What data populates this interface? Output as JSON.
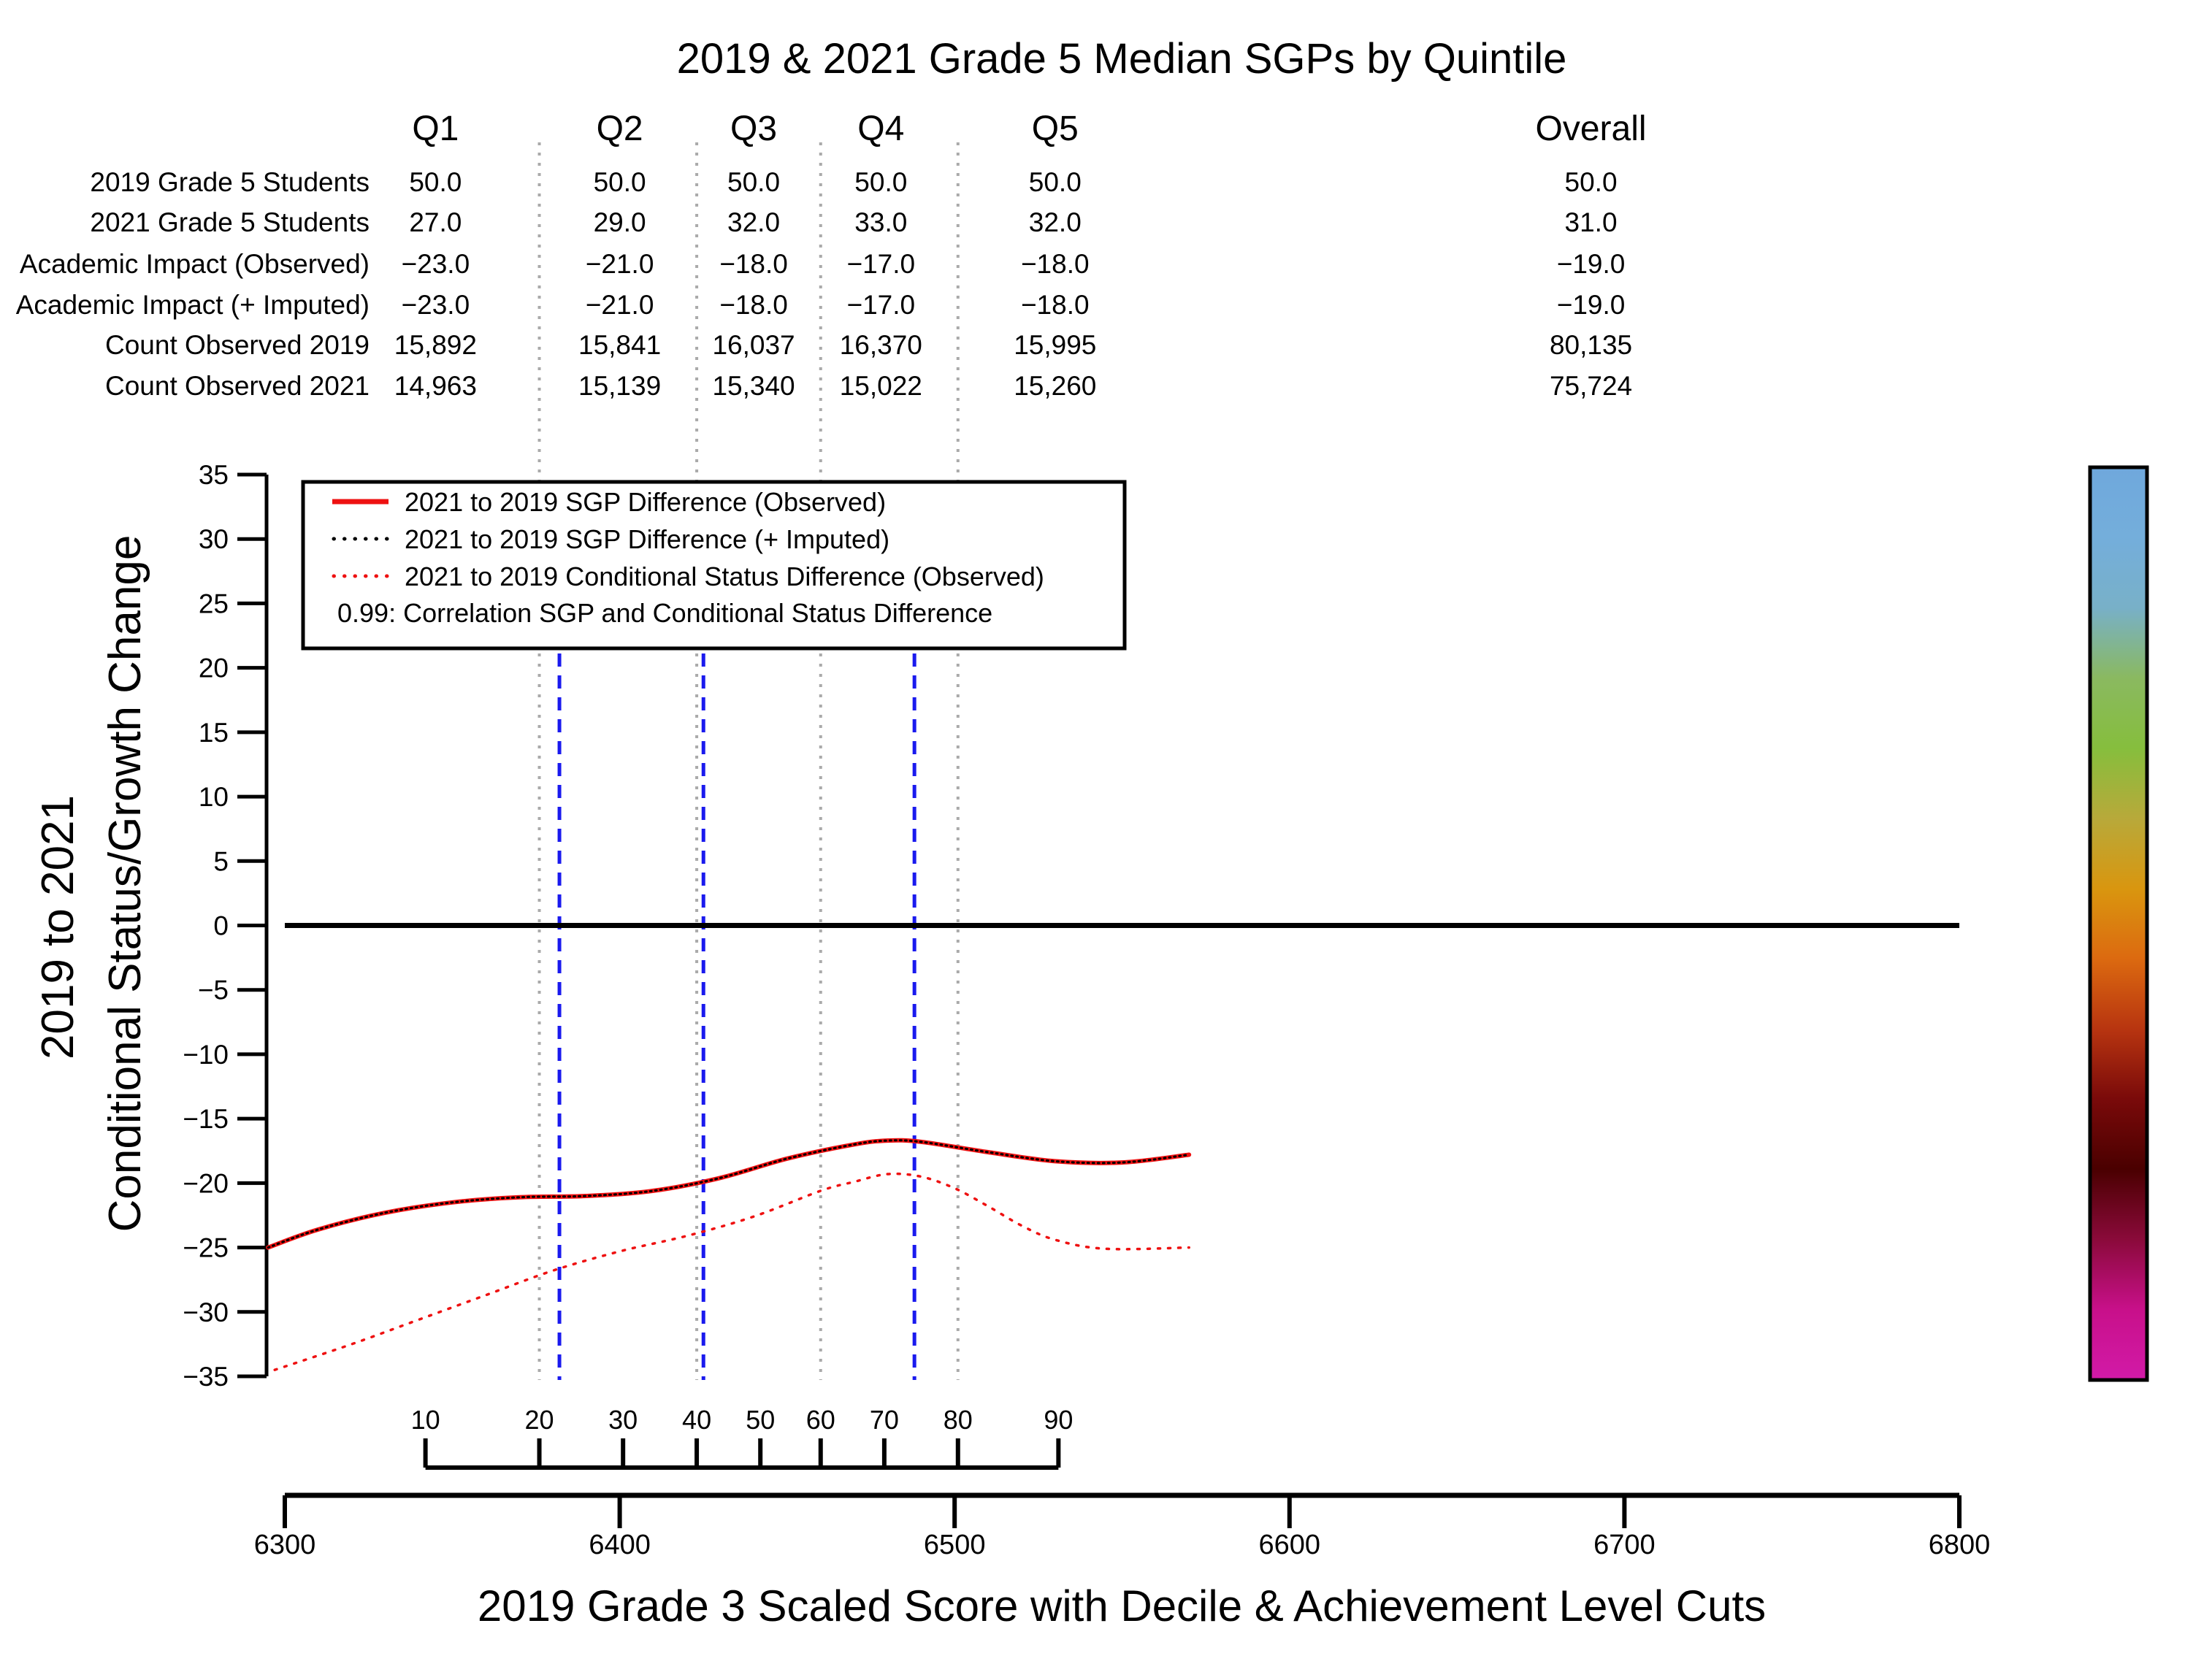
{
  "chart_data": {
    "type": "line",
    "title": "2019 & 2021 Grade 5 Median SGPs by Quintile",
    "xlabel": "2019 Grade 3 Scaled Score with Decile & Achievement Level Cuts",
    "ylabel_line1": "2019 to 2021",
    "ylabel_line2": "Conditional Status/Growth Change",
    "xlim": [
      6300,
      6800
    ],
    "ylim": [
      -35,
      35
    ],
    "x_ticks": [
      "6300",
      "6400",
      "6500",
      "6600",
      "6700",
      "6800"
    ],
    "y_ticks": [
      "35",
      "30",
      "25",
      "20",
      "15",
      "10",
      "5",
      "0",
      "−5",
      "−10",
      "−15",
      "−20",
      "−25",
      "−30",
      "−35"
    ],
    "decile_ticks": {
      "labels": [
        "10",
        "20",
        "30",
        "40",
        "50",
        "60",
        "70",
        "80",
        "90"
      ],
      "scores": [
        6342,
        6376,
        6401,
        6423,
        6442,
        6460,
        6479,
        6501,
        6531
      ]
    },
    "quintile_cuts": [
      6376,
      6423,
      6460,
      6501
    ],
    "achievement_level_cuts": [
      6382,
      6425,
      6488
    ],
    "zero_line": 0,
    "table": {
      "columns": [
        "Q1",
        "Q2",
        "Q3",
        "Q4",
        "Q5",
        "Overall"
      ],
      "rows": [
        {
          "label": "2019 Grade 5 Students",
          "values": [
            "50.0",
            "50.0",
            "50.0",
            "50.0",
            "50.0",
            "50.0"
          ]
        },
        {
          "label": "2021 Grade 5 Students",
          "values": [
            "27.0",
            "29.0",
            "32.0",
            "33.0",
            "32.0",
            "31.0"
          ]
        },
        {
          "label": "Academic Impact (Observed)",
          "values": [
            "−23.0",
            "−21.0",
            "−18.0",
            "−17.0",
            "−18.0",
            "−19.0"
          ]
        },
        {
          "label": "Academic Impact (+ Imputed)",
          "values": [
            "−23.0",
            "−21.0",
            "−18.0",
            "−17.0",
            "−18.0",
            "−19.0"
          ]
        },
        {
          "label": "Count Observed 2019",
          "values": [
            "15,892",
            "15,841",
            "16,037",
            "16,370",
            "15,995",
            "80,135"
          ]
        },
        {
          "label": "Count Observed 2021",
          "values": [
            "14,963",
            "15,139",
            "15,340",
            "15,022",
            "15,260",
            "75,724"
          ]
        }
      ]
    },
    "legend": {
      "placement": "top-left",
      "entries": [
        {
          "label": "2021 to 2019 SGP Difference (Observed)",
          "style": "solid",
          "color": "#ee1111"
        },
        {
          "label": "2021 to 2019 SGP Difference (+ Imputed)",
          "style": "dotted",
          "color": "#000000"
        },
        {
          "label": "2021 to 2019 Conditional Status Difference (Observed)",
          "style": "dotted",
          "color": "#ee1111"
        },
        {
          "label": "0.99: Correlation SGP and Conditional Status Difference",
          "style": "none",
          "color": "#000000"
        }
      ]
    },
    "series": [
      {
        "name": "2021 to 2019 SGP Difference (Observed)",
        "color": "#ee1111",
        "style": "solid",
        "x": [
          6295,
          6310,
          6330,
          6350,
          6370,
          6390,
          6410,
          6430,
          6450,
          6470,
          6480,
          6490,
          6510,
          6530,
          6550,
          6570
        ],
        "y": [
          -25.0,
          -23.6,
          -22.3,
          -21.5,
          -21.1,
          -21.0,
          -20.6,
          -19.6,
          -18.1,
          -17.0,
          -16.7,
          -16.8,
          -17.6,
          -18.3,
          -18.4,
          -17.8
        ]
      },
      {
        "name": "2021 to 2019 SGP Difference (+ Imputed)",
        "color": "#000000",
        "style": "dotted",
        "x": [
          6295,
          6310,
          6330,
          6350,
          6370,
          6390,
          6410,
          6430,
          6450,
          6470,
          6480,
          6490,
          6510,
          6530,
          6550,
          6570
        ],
        "y": [
          -25.0,
          -23.6,
          -22.3,
          -21.5,
          -21.1,
          -21.0,
          -20.6,
          -19.6,
          -18.1,
          -17.0,
          -16.7,
          -16.8,
          -17.6,
          -18.3,
          -18.4,
          -17.8
        ]
      },
      {
        "name": "2021 to 2019 Conditional Status Difference (Observed)",
        "color": "#ee1111",
        "style": "dotted",
        "x": [
          6297,
          6320,
          6340,
          6360,
          6380,
          6400,
          6420,
          6440,
          6460,
          6470,
          6480,
          6490,
          6500,
          6510,
          6520,
          6530,
          6545,
          6570
        ],
        "y": [
          -34.5,
          -32.5,
          -30.6,
          -28.7,
          -26.8,
          -25.3,
          -24.1,
          -22.6,
          -20.6,
          -19.9,
          -19.3,
          -19.5,
          -20.4,
          -21.8,
          -23.3,
          -24.4,
          -25.1,
          -25.0
        ]
      }
    ],
    "color_bar": {
      "colors": [
        "#6fa8dc",
        "#74aedb",
        "#78b0c8",
        "#8ab960",
        "#86be3d",
        "#b8a93a",
        "#d9960f",
        "#dc6a10",
        "#b83510",
        "#7a0a0a",
        "#4a0000",
        "#8a0a3a",
        "#c8108a",
        "#d21aa8"
      ]
    }
  }
}
